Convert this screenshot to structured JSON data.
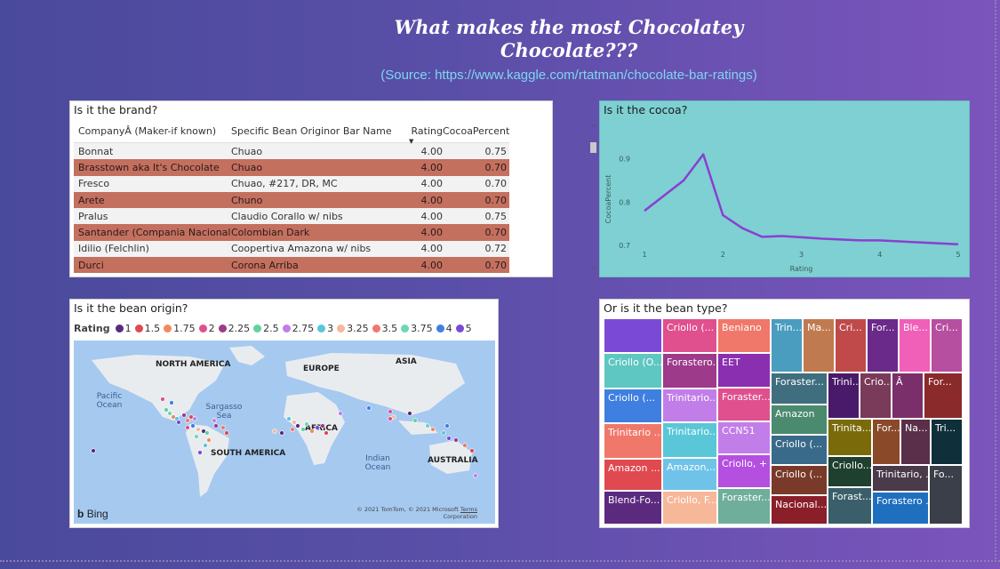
{
  "header": {
    "title": "What makes the most Chocolatey Chocolate???",
    "source": "(Source: https://www.kaggle.com/rtatman/chocolate-bar-ratings)"
  },
  "brand_table": {
    "title": "Is it the brand?",
    "columns": [
      "CompanyÂ (Maker-if known)",
      "Specific Bean Originor Bar Name",
      "Rating",
      "CocoaPercent"
    ],
    "rows": [
      [
        "Bonnat",
        "Chuao",
        "4.00",
        "0.75"
      ],
      [
        "Brasstown aka It's Chocolate",
        "Chuao",
        "4.00",
        "0.70"
      ],
      [
        "Fresco",
        "Chuao, #217, DR, MC",
        "4.00",
        "0.70"
      ],
      [
        "Arete",
        "Chuno",
        "4.00",
        "0.70"
      ],
      [
        "Pralus",
        "Claudio Corallo w/ nibs",
        "4.00",
        "0.75"
      ],
      [
        "Santander (Compania Nacional)",
        "Colombian Dark",
        "4.00",
        "0.70"
      ],
      [
        "Idilio (Felchlin)",
        "Coopertiva Amazona w/ nibs",
        "4.00",
        "0.72"
      ],
      [
        "Durci",
        "Corona Arriba",
        "4.00",
        "0.70"
      ]
    ],
    "row_odd_color": "#f2f2f2",
    "row_even_color": "#c4705f"
  },
  "cocoa_chart": {
    "title": "Is it the cocoa?",
    "chart_data": {
      "type": "line",
      "title": "Is it the cocoa?",
      "xlabel": "Rating",
      "ylabel": "CocoaPercent",
      "x": [
        1,
        1.5,
        1.75,
        2,
        2.25,
        2.5,
        2.75,
        3,
        3.25,
        3.5,
        3.75,
        4,
        5
      ],
      "values": [
        0.78,
        0.85,
        0.91,
        0.77,
        0.74,
        0.72,
        0.722,
        0.719,
        0.716,
        0.714,
        0.712,
        0.712,
        0.703
      ],
      "xlim": [
        1,
        5
      ],
      "ylim": [
        0.68,
        0.95
      ],
      "xticks": [
        "1",
        "2",
        "3",
        "4",
        "5"
      ],
      "yticks": [
        "0.7",
        "0.8",
        "0.9"
      ],
      "line_color": "#8a3fd1"
    }
  },
  "map": {
    "title": "Is it the bean origin?",
    "legend_label": "Rating",
    "legend": [
      {
        "label": "1",
        "color": "#5b2a7e"
      },
      {
        "label": "1.5",
        "color": "#e0494f"
      },
      {
        "label": "1.75",
        "color": "#f08a5d"
      },
      {
        "label": "2",
        "color": "#e04f8e"
      },
      {
        "label": "2.25",
        "color": "#9d3a8a"
      },
      {
        "label": "2.5",
        "color": "#5fd39b"
      },
      {
        "label": "2.75",
        "color": "#c17ee8"
      },
      {
        "label": "3",
        "color": "#59c7d8"
      },
      {
        "label": "3.25",
        "color": "#f7b89a"
      },
      {
        "label": "3.5",
        "color": "#f0786a"
      },
      {
        "label": "3.75",
        "color": "#6fd6b8"
      },
      {
        "label": "4",
        "color": "#3f7fe0"
      },
      {
        "label": "5",
        "color": "#7a4ad6"
      }
    ],
    "continents": [
      "NORTH AMERICA",
      "EUROPE",
      "ASIA",
      "AFRICA",
      "SOUTH AMERICA",
      "AUSTRALIA"
    ],
    "oceans": [
      "Pacific Ocean",
      "Sargasso Sea",
      "Indian Ocean"
    ],
    "bing": "Bing",
    "copyright": "© 2021 TomTom, © 2021 Microsoft",
    "terms": "Terms",
    "corporation": "Corporation"
  },
  "treemap": {
    "title": "Or is it the bean type?",
    "tiles": [
      {
        "label": "",
        "color": "#7a4ad6"
      },
      {
        "label": "Criollo (O...",
        "color": "#5fc7c1"
      },
      {
        "label": "Criollo (...",
        "color": "#3f7fe0"
      },
      {
        "label": "Trinitario ...",
        "color": "#f0786a"
      },
      {
        "label": "Amazon ...",
        "color": "#e0494f"
      },
      {
        "label": "Blend-Fo...",
        "color": "#5b2a7e"
      },
      {
        "label": "Criollo (...",
        "color": "#e04f8e"
      },
      {
        "label": "Forastero...",
        "color": "#9d3a8a"
      },
      {
        "label": "Trinitario...",
        "color": "#c17ee8"
      },
      {
        "label": "Trinitario...",
        "color": "#59c7d8"
      },
      {
        "label": "Amazon,...",
        "color": "#6fc3e8"
      },
      {
        "label": "Criollo, F...",
        "color": "#f7b89a"
      },
      {
        "label": "Beniano",
        "color": "#f0786a"
      },
      {
        "label": "EET",
        "color": "#8a2fb0"
      },
      {
        "label": "Foraster...",
        "color": "#e04f8e"
      },
      {
        "label": "CCN51",
        "color": "#c17ee8"
      },
      {
        "label": "Criollo, +",
        "color": "#b44fe0"
      },
      {
        "label": "Foraster...",
        "color": "#6fae9b"
      },
      {
        "label": "Trin...",
        "color": "#4a9dbf"
      },
      {
        "label": "Ma...",
        "color": "#c07a4f"
      },
      {
        "label": "Cri...",
        "color": "#c04a4a"
      },
      {
        "label": "For...",
        "color": "#6a2a8a"
      },
      {
        "label": "Ble...",
        "color": "#f05fb8"
      },
      {
        "label": "Cri...",
        "color": "#b64fa0"
      },
      {
        "label": "Foraster...",
        "color": "#3f6f7f"
      },
      {
        "label": "Trini...",
        "color": "#4a1a6a"
      },
      {
        "label": "Crio...",
        "color": "#7a3a5a"
      },
      {
        "label": "Â",
        "color": "#7a2f6a"
      },
      {
        "label": "For...",
        "color": "#8a2a2a"
      },
      {
        "label": "Amazon",
        "color": "#4a8a6f"
      },
      {
        "label": "Criollo (...",
        "color": "#3a6a8a"
      },
      {
        "label": "Trinita...",
        "color": "#7a6a0a"
      },
      {
        "label": "For...",
        "color": "#8a4a2a"
      },
      {
        "label": "Na...",
        "color": "#5a2f4a"
      },
      {
        "label": "Tri...",
        "color": "#0f2f3a"
      },
      {
        "label": "Criollo (...",
        "color": "#7a3a2a"
      },
      {
        "label": "Criollo...",
        "color": "#1f3f2f"
      },
      {
        "label": "Trinitario, ...",
        "color": "#4a3a4a"
      },
      {
        "label": "Fo...",
        "color": "#3a3f4a"
      },
      {
        "label": "Nacional...",
        "color": "#8a1f2a"
      },
      {
        "label": "Forast...",
        "color": "#3a5f6a"
      },
      {
        "label": "Forastero ...",
        "color": "#1f6fbf"
      }
    ]
  }
}
